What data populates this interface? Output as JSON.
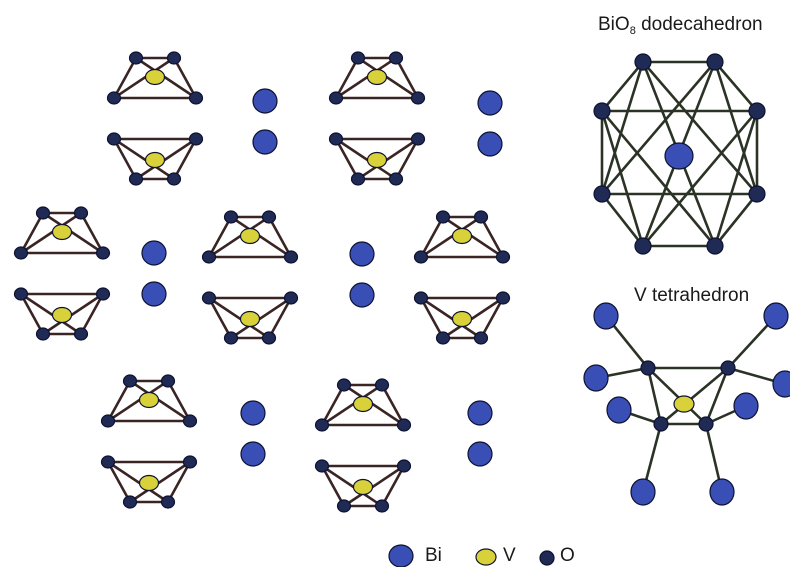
{
  "labels": {
    "dodecahedron_prefix": "BiO",
    "dodecahedron_subscript": "8",
    "dodecahedron_suffix": " dodecahedron",
    "tetrahedron": "V tetrahedron"
  },
  "legend": [
    {
      "symbol": "Bi",
      "label": "Bi"
    },
    {
      "symbol": "V",
      "label": "V"
    },
    {
      "symbol": "O",
      "label": "O"
    }
  ],
  "colors": {
    "bi": "#3a4fb5",
    "v": "#d9d13a",
    "o": "#1f2a55",
    "bond": "#3a2424",
    "polyhedron_edge": "#2a3325"
  }
}
